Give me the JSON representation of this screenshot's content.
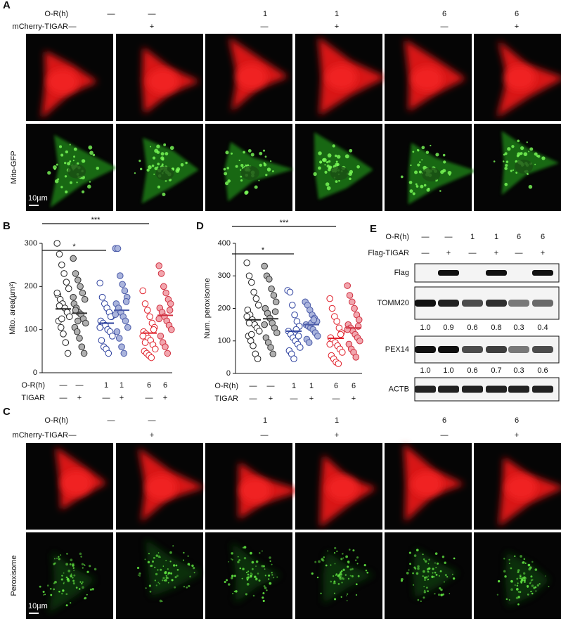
{
  "panel_a": {
    "label": "A",
    "row_labels": [
      "O-R(h)",
      "mCherry-TIGAR"
    ],
    "or_h": [
      "—",
      "—",
      "1",
      "1",
      "6",
      "6"
    ],
    "mcherry_tigar": [
      "—",
      "+",
      "—",
      "+",
      "—",
      "+"
    ],
    "channel_label": "Mito-GFP",
    "scale_bar": "10µm"
  },
  "panel_b": {
    "label": "B",
    "type": "dot_plot",
    "y_label": "Mito. area(µm²)",
    "ylim": [
      0,
      300
    ],
    "yticks": [
      0,
      100,
      200,
      300
    ],
    "row_labels": [
      "O-R(h)",
      "TIGAR"
    ],
    "or_h": [
      "—",
      "—",
      "1",
      "1",
      "6",
      "6"
    ],
    "tigar": [
      "—",
      "+",
      "—",
      "+",
      "—",
      "+"
    ],
    "groups": [
      {
        "color": "#222222",
        "fill": "#ffffff",
        "mean": 148,
        "values": [
          300,
          275,
          250,
          230,
          210,
          195,
          180,
          170,
          160,
          150,
          140,
          130,
          120,
          105,
          90,
          70,
          45,
          185,
          155,
          125
        ]
      },
      {
        "color": "#333333",
        "fill": "#b0b0b0",
        "mean": 138,
        "values": [
          265,
          230,
          215,
          200,
          185,
          170,
          160,
          150,
          140,
          135,
          125,
          115,
          105,
          95,
          80,
          60,
          45,
          175,
          145,
          120
        ]
      },
      {
        "color": "#2b3f9e",
        "fill": "#ffffff",
        "mean": 115,
        "values": [
          208,
          175,
          160,
          150,
          140,
          130,
          120,
          115,
          110,
          100,
          95,
          85,
          75,
          60,
          55,
          45,
          130,
          105
        ]
      },
      {
        "color": "#4a5aa8",
        "fill": "#aab4dc",
        "mean": 145,
        "values": [
          288,
          288,
          225,
          205,
          190,
          175,
          160,
          150,
          140,
          130,
          120,
          105,
          95,
          80,
          60,
          45,
          165,
          135
        ]
      },
      {
        "color": "#e0202a",
        "fill": "#ffffff",
        "mean": 92,
        "values": [
          190,
          160,
          145,
          130,
          115,
          105,
          95,
          90,
          80,
          75,
          65,
          55,
          50,
          45,
          40,
          35,
          100,
          85,
          70
        ]
      },
      {
        "color": "#d03040",
        "fill": "#f2a6ae",
        "mean": 133,
        "values": [
          248,
          230,
          200,
          185,
          170,
          160,
          150,
          140,
          130,
          120,
          110,
          100,
          85,
          70,
          60,
          45,
          145,
          125
        ]
      }
    ],
    "significance": [
      {
        "label": "*",
        "groups": [
          0,
          2
        ]
      },
      {
        "label": "***",
        "groups": [
          0,
          4
        ]
      }
    ]
  },
  "panel_c": {
    "label": "C",
    "row_labels": [
      "O-R(h)",
      "mCherry-TIGAR"
    ],
    "or_h": [
      "—",
      "—",
      "1",
      "1",
      "6",
      "6"
    ],
    "mcherry_tigar": [
      "—",
      "+",
      "—",
      "+",
      "—",
      "+"
    ],
    "channel_label": "Peroxisome",
    "scale_bar": "10µm"
  },
  "panel_d": {
    "label": "D",
    "type": "dot_plot",
    "y_label": "Num. peroxisome",
    "ylim": [
      0,
      400
    ],
    "yticks": [
      0,
      100,
      200,
      300,
      400
    ],
    "row_labels": [
      "O-R(h)",
      "TIGAR"
    ],
    "or_h": [
      "—",
      "—",
      "1",
      "1",
      "6",
      "6"
    ],
    "tigar": [
      "—",
      "+",
      "—",
      "+",
      "—",
      "+"
    ],
    "groups": [
      {
        "color": "#222222",
        "fill": "#ffffff",
        "mean": 165,
        "values": [
          340,
          300,
          280,
          250,
          230,
          210,
          195,
          180,
          165,
          150,
          140,
          130,
          115,
          100,
          85,
          60,
          45,
          175,
          155,
          120
        ]
      },
      {
        "color": "#333333",
        "fill": "#b0b0b0",
        "mean": 168,
        "values": [
          330,
          300,
          290,
          260,
          240,
          220,
          200,
          185,
          170,
          155,
          140,
          125,
          110,
          95,
          80,
          60,
          190,
          150
        ]
      },
      {
        "color": "#2b3f9e",
        "fill": "#ffffff",
        "mean": 130,
        "values": [
          255,
          250,
          210,
          180,
          160,
          145,
          130,
          120,
          110,
          100,
          90,
          80,
          70,
          60,
          45,
          135,
          115
        ]
      },
      {
        "color": "#4a5aa8",
        "fill": "#aab4dc",
        "mean": 150,
        "values": [
          220,
          210,
          195,
          180,
          170,
          160,
          150,
          145,
          140,
          135,
          125,
          115,
          105,
          95,
          155,
          165
        ]
      },
      {
        "color": "#e0202a",
        "fill": "#ffffff",
        "mean": 108,
        "values": [
          230,
          200,
          175,
          160,
          140,
          125,
          110,
          100,
          95,
          85,
          75,
          65,
          55,
          45,
          35,
          30,
          120,
          90
        ]
      },
      {
        "color": "#d03040",
        "fill": "#f2a6ae",
        "mean": 140,
        "values": [
          270,
          240,
          220,
          200,
          180,
          165,
          150,
          140,
          130,
          120,
          110,
          100,
          90,
          75,
          65,
          50,
          145,
          135
        ]
      }
    ],
    "significance": [
      {
        "label": "*",
        "groups": [
          0,
          2
        ]
      },
      {
        "label": "***",
        "groups": [
          0,
          4
        ]
      }
    ]
  },
  "panel_e": {
    "label": "E",
    "row_labels": [
      "O-R(h)",
      "Flag-TIGAR"
    ],
    "or_h": [
      "—",
      "—",
      "1",
      "1",
      "6",
      "6"
    ],
    "flag_tigar": [
      "—",
      "+",
      "—",
      "+",
      "—",
      "+"
    ],
    "blots": [
      {
        "name": "Flag"
      },
      {
        "name": "TOMM20",
        "values": [
          1.0,
          0.9,
          0.6,
          0.8,
          0.3,
          0.4
        ],
        "value_labels": [
          "1.0",
          "0.9",
          "0.6",
          "0.8",
          "0.3",
          "0.4"
        ]
      },
      {
        "name": "PEX14",
        "values": [
          1.0,
          1.0,
          0.6,
          0.7,
          0.3,
          0.6
        ],
        "value_labels": [
          "1.0",
          "1.0",
          "0.6",
          "0.7",
          "0.3",
          "0.6"
        ]
      },
      {
        "name": "ACTB"
      }
    ]
  }
}
